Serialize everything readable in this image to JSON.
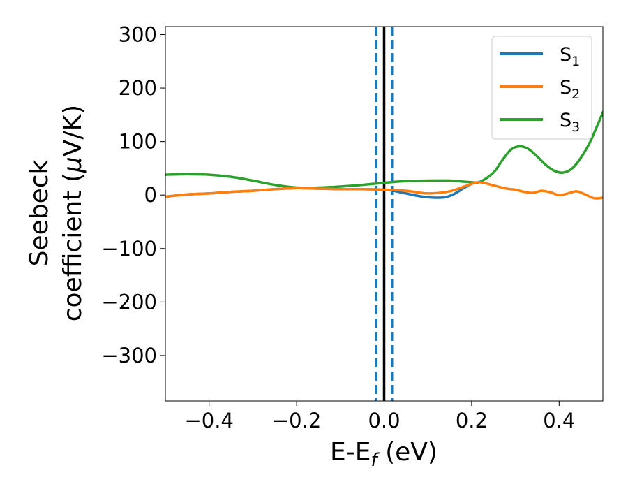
{
  "chart_data": {
    "type": "line",
    "xlabel": "E-E_f (eV)",
    "xlabel_main": "E-E",
    "xlabel_sub": "f",
    "xlabel_tail": " (eV)",
    "ylabel_line1": "Seebeck",
    "ylabel_line2_pre": "coefficient  (",
    "ylabel_line2_mu": "μ",
    "ylabel_line2_post": "V/K)",
    "xlim": [
      -0.5,
      0.5
    ],
    "ylim": [
      -385,
      315
    ],
    "xticks": [
      -0.4,
      -0.2,
      0.0,
      0.2,
      0.4
    ],
    "xtick_labels": [
      "−0.4",
      "−0.2",
      "0.0",
      "0.2",
      "0.4"
    ],
    "yticks": [
      -300,
      -200,
      -100,
      0,
      100,
      200,
      300
    ],
    "ytick_labels": [
      "−300",
      "−200",
      "−100",
      "0",
      "100",
      "200",
      "300"
    ],
    "legend_position": "top-right",
    "grid": false,
    "vlines": [
      {
        "x": -0.018,
        "color": "#1f77b4",
        "style": "dashed"
      },
      {
        "x": 0.0,
        "color": "#000000",
        "style": "solid"
      },
      {
        "x": 0.018,
        "color": "#1f77b4",
        "style": "dashed"
      }
    ],
    "series": [
      {
        "name": "S1",
        "label_main": "S",
        "label_sub": "1",
        "color": "#1f77b4",
        "x": [
          -0.5,
          -0.45,
          -0.4,
          -0.35,
          -0.3,
          -0.25,
          -0.2,
          -0.15,
          -0.1,
          -0.05,
          0.0,
          0.02,
          0.05,
          0.08,
          0.1,
          0.12,
          0.14,
          0.16,
          0.18,
          0.2,
          0.22
        ],
        "y": [
          -3,
          1,
          3,
          6,
          8,
          11,
          13,
          12,
          11,
          11,
          10,
          8,
          3,
          -2,
          -4,
          -5,
          -4,
          2,
          12,
          21,
          25
        ]
      },
      {
        "name": "S2",
        "label_main": "S",
        "label_sub": "2",
        "color": "#ff7f0e",
        "x": [
          -0.5,
          -0.45,
          -0.4,
          -0.35,
          -0.3,
          -0.25,
          -0.2,
          -0.15,
          -0.1,
          -0.05,
          0.0,
          0.05,
          0.1,
          0.15,
          0.2,
          0.22,
          0.25,
          0.28,
          0.3,
          0.32,
          0.34,
          0.36,
          0.38,
          0.4,
          0.42,
          0.44,
          0.46,
          0.48,
          0.5
        ],
        "y": [
          -3,
          1,
          3,
          6,
          8,
          11,
          13,
          12,
          11,
          11,
          10,
          8,
          3,
          7,
          21,
          24,
          18,
          12,
          10,
          6,
          4,
          8,
          5,
          0,
          3,
          7,
          1,
          -6,
          -5
        ]
      },
      {
        "name": "S3",
        "label_main": "S",
        "label_sub": "3",
        "color": "#2ca02c",
        "x": [
          -0.5,
          -0.45,
          -0.4,
          -0.35,
          -0.3,
          -0.25,
          -0.2,
          -0.15,
          -0.1,
          -0.05,
          0.0,
          0.05,
          0.1,
          0.15,
          0.2,
          0.22,
          0.25,
          0.27,
          0.29,
          0.31,
          0.33,
          0.35,
          0.37,
          0.39,
          0.41,
          0.43,
          0.45,
          0.47,
          0.49,
          0.5
        ],
        "y": [
          38,
          39,
          38,
          34,
          27,
          19,
          14,
          14,
          16,
          19,
          23,
          26,
          27,
          27,
          24,
          25,
          42,
          65,
          85,
          91,
          86,
          72,
          56,
          45,
          42,
          50,
          70,
          98,
          135,
          155
        ]
      }
    ]
  }
}
